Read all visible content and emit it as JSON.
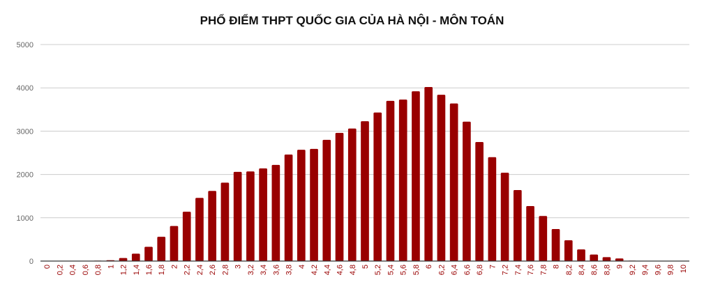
{
  "chart_data": {
    "type": "bar",
    "title": "PHỔ ĐIỂM THPT QUỐC GIA CỦA HÀ NỘI - MÔN TOÁN",
    "xlabel": "",
    "ylabel": "",
    "ylim": [
      0,
      5000
    ],
    "yticks": [
      "0",
      "1000",
      "2000",
      "3000",
      "4000",
      "5000"
    ],
    "grid": true,
    "legend": "none",
    "categories": [
      "0",
      "0,2",
      "0,4",
      "0,6",
      "0,8",
      "1",
      "1,2",
      "1,4",
      "1,6",
      "1,8",
      "2",
      "2,2",
      "2,4",
      "2,6",
      "2,8",
      "3",
      "3,2",
      "3,4",
      "3,6",
      "3,8",
      "4",
      "4,2",
      "4,4",
      "4,6",
      "4,8",
      "5",
      "5,2",
      "5,4",
      "5,6",
      "5,8",
      "6",
      "6,2",
      "6,4",
      "6,6",
      "6,8",
      "7",
      "7,2",
      "7,4",
      "7,6",
      "7,8",
      "8",
      "8,2",
      "8,4",
      "8,6",
      "8,8",
      "9",
      "9,2",
      "9,4",
      "9,6",
      "9,8",
      "10"
    ],
    "values": [
      0,
      0,
      0,
      0,
      10,
      20,
      70,
      170,
      330,
      560,
      810,
      1140,
      1460,
      1620,
      1810,
      2060,
      2070,
      2140,
      2220,
      2460,
      2570,
      2590,
      2800,
      2960,
      3060,
      3230,
      3430,
      3700,
      3730,
      3920,
      4020,
      3840,
      3640,
      3220,
      2750,
      2400,
      2040,
      1640,
      1270,
      1040,
      740,
      480,
      270,
      150,
      90,
      60,
      10,
      0,
      0,
      0,
      0
    ],
    "colors": {
      "bar": "#990000",
      "x_tick": "#990000",
      "y_tick": "#666666",
      "grid": "#cccccc",
      "axis": "#333333"
    }
  }
}
